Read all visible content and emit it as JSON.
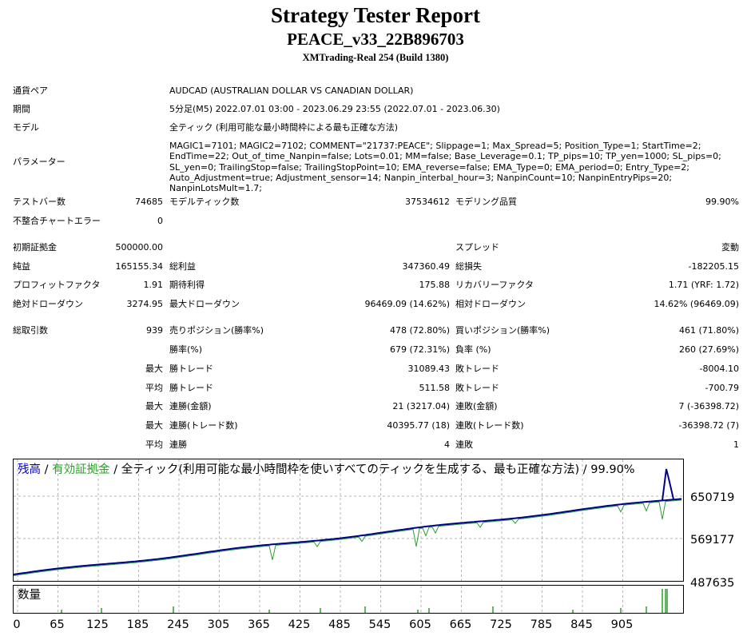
{
  "header": {
    "title": "Strategy Tester Report",
    "ea_name": "PEACE_v33_22B896703",
    "server": "XMTrading-Real 254 (Build 1380)"
  },
  "info": {
    "symbol_label": "通貨ペア",
    "symbol_value": "AUDCAD (AUSTRALIAN DOLLAR VS CANADIAN DOLLAR)",
    "period_label": "期間",
    "period_value": "5分足(M5) 2022.07.01 03:00 - 2023.06.29 23:55 (2022.07.01 - 2023.06.30)",
    "model_label": "モデル",
    "model_value": "全ティック (利用可能な最小時間枠による最も正確な方法)",
    "params_label": "パラメーター",
    "params_value": "MAGIC1=7101; MAGIC2=7102; COMMENT=\"21737:PEACE\"; Slippage=1; Max_Spread=5; Position_Type=1; StartTime=2;\nEndTime=22; Out_of_time_Nanpin=false; Lots=0.01; MM=false; Base_Leverage=0.1; TP_pips=10; TP_yen=1000; SL_pips=0;\nSL_yen=0; TrailingStop=false; TrailingStopPoint=10; EMA_reverse=false; EMA_Type=0; EMA_period=0; Entry_Type=2;\nAuto_Adjustment=true; Adjustment_sensor=14; Nanpin_interbal_hour=3; NanpinCount=10; NanpinEntryPips=20; NanpinLotsMult=1.7;"
  },
  "stats": {
    "bars_label": "テストバー数",
    "bars_value": "74685",
    "ticks_label": "モデルティック数",
    "ticks_value": "37534612",
    "quality_label": "モデリング品質",
    "quality_value": "99.90%",
    "mismatch_label": "不整合チャートエラー",
    "mismatch_value": "0",
    "deposit_label": "初期証拠金",
    "deposit_value": "500000.00",
    "spread_label": "スプレッド",
    "spread_value": "変動",
    "net_label": "純益",
    "net_value": "165155.34",
    "gross_profit_label": "総利益",
    "gross_profit_value": "347360.49",
    "gross_loss_label": "総損失",
    "gross_loss_value": "-182205.15",
    "pf_label": "プロフィットファクタ",
    "pf_value": "1.91",
    "payoff_label": "期待利得",
    "payoff_value": "175.88",
    "recovery_label": "リカバリーファクタ",
    "recovery_value": "1.71 (YRF: 1.72)",
    "abs_dd_label": "絶対ドローダウン",
    "abs_dd_value": "3274.95",
    "max_dd_label": "最大ドローダウン",
    "max_dd_value": "96469.09 (14.62%)",
    "rel_dd_label": "相対ドローダウン",
    "rel_dd_value": "14.62% (96469.09)",
    "trades_label": "総取引数",
    "trades_value": "939",
    "short_label": "売りポジション(勝率%)",
    "short_value": "478 (72.80%)",
    "long_label": "買いポジション(勝率%)",
    "long_value": "461 (71.80%)",
    "win_pct_label": "勝率(%)",
    "win_pct_value": "679 (72.31%)",
    "loss_pct_label": "負率 (%)",
    "loss_pct_value": "260 (27.69%)",
    "max_word": "最大",
    "avg_word": "平均",
    "max_win_label": "勝トレード",
    "max_win_value": "31089.43",
    "max_loss_label": "敗トレード",
    "max_loss_value": "-8004.10",
    "avg_win_label": "勝トレード",
    "avg_win_value": "511.58",
    "avg_loss_label": "敗トレード",
    "avg_loss_value": "-700.79",
    "cons_win_amt_label": "連勝(金額)",
    "cons_win_amt_value": "21 (3217.04)",
    "cons_loss_amt_label": "連敗(金額)",
    "cons_loss_amt_value": "7 (-36398.72)",
    "cons_win_cnt_label": "連勝(トレード数)",
    "cons_win_cnt_value": "40395.77 (18)",
    "cons_loss_cnt_label": "連敗(トレード数)",
    "cons_loss_cnt_value": "-36398.72 (7)",
    "avg_cons_win_label": "連勝",
    "avg_cons_win_value": "4",
    "avg_cons_loss_label": "連敗",
    "avg_cons_loss_value": "1"
  },
  "chart": {
    "legend_balance": "残高",
    "legend_sep1": " / ",
    "legend_equity": "有効証拠金",
    "legend_rest": " / 全ティック(利用可能な最小時間枠を使いすべてのティックを生成する、最も正確な方法) / 99.90%",
    "y_labels": [
      "650719",
      "569177",
      "487635"
    ],
    "x_labels": [
      "0",
      "65",
      "125",
      "185",
      "245",
      "305",
      "365",
      "425",
      "485",
      "545",
      "605",
      "665",
      "725",
      "785",
      "845",
      "905"
    ],
    "volume_label": "数量",
    "balance_color": "#00008b",
    "equity_color": "#2e9e2e",
    "grid_color": "#b4b4b4"
  }
}
